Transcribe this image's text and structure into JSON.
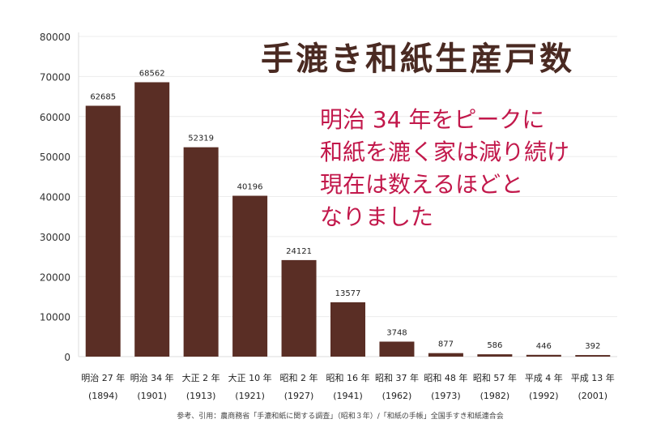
{
  "chart_data": {
    "type": "bar",
    "title": "手漉き和紙生産戸数",
    "annotation": [
      "明治 34 年をピークに",
      "和紙を漉く家は減り続け",
      "現在は数えるほどと",
      "なりました"
    ],
    "categories": [
      "明治 27 年",
      "明治 34 年",
      "大正 2 年",
      "大正 10 年",
      "昭和 2 年",
      "昭和 16 年",
      "昭和 37 年",
      "昭和 48 年",
      "昭和 57 年",
      "平成 4 年",
      "平成 13 年"
    ],
    "category_years": [
      "(1894)",
      "(1901)",
      "(1913)",
      "(1921)",
      "(1927)",
      "(1941)",
      "(1962)",
      "(1973)",
      "(1982)",
      "(1992)",
      "(2001)"
    ],
    "values": [
      62685,
      68562,
      52319,
      40196,
      24121,
      13577,
      3748,
      877,
      586,
      446,
      392
    ],
    "yticks": [
      0,
      10000,
      20000,
      30000,
      40000,
      50000,
      60000,
      70000,
      80000
    ],
    "ylim": [
      0,
      80000
    ],
    "grid": true,
    "xlabel": "",
    "ylabel": "",
    "source": "参考、引用：農商務省「手漉和紙に関する調査」（昭和３年）/「和紙の手帳」全国手すき和紙連合会",
    "colors": {
      "bar": "#5a2e25",
      "title": "#4a2a22",
      "annotation": "#c2184b"
    }
  }
}
